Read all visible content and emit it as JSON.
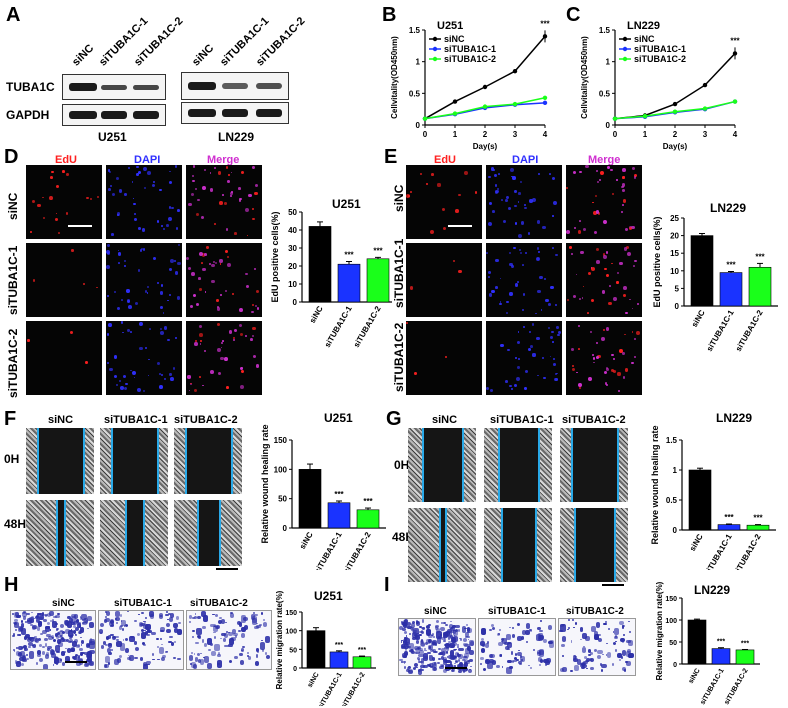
{
  "panels": {
    "A": "A",
    "B": "B",
    "C": "C",
    "D": "D",
    "E": "E",
    "F": "F",
    "G": "G",
    "H": "H",
    "I": "I"
  },
  "groups": {
    "nc": "siNC",
    "t1": "siTUBA1C-1",
    "t2": "siTUBA1C-2"
  },
  "western": {
    "proteins": [
      "TUBA1C",
      "GAPDH"
    ],
    "cell_lines": [
      "U251",
      "LN229"
    ]
  },
  "channels": {
    "edu": "EdU",
    "dapi": "DAPI",
    "merge": "Merge"
  },
  "timepoints": [
    "0H",
    "48H"
  ],
  "colors": {
    "black": "#000000",
    "blue": "#1a33ff",
    "green": "#1aff1a",
    "edu": "#ff2020",
    "dapi": "#3030ff",
    "merge": "#d030d0",
    "scratch_line": "#29a9e8",
    "crystal_violet": "#2c2fa8"
  },
  "sig": "***",
  "chart_data": [
    {
      "id": "B",
      "type": "line",
      "title": "U251",
      "xlabel": "Day(s)",
      "ylabel": "Cellvitality(OD450nm)",
      "x": [
        0,
        1,
        2,
        3,
        4
      ],
      "xlim": [
        0,
        4
      ],
      "ylim": [
        0,
        1.5
      ],
      "yticks": [
        0,
        0.5,
        1,
        1.5
      ],
      "xticks": [
        0,
        1,
        2,
        3,
        4
      ],
      "series": [
        {
          "name": "siNC",
          "color": "#000000",
          "values": [
            0.1,
            0.37,
            0.6,
            0.85,
            1.4
          ]
        },
        {
          "name": "siTUBA1C-1",
          "color": "#1a33ff",
          "values": [
            0.1,
            0.17,
            0.27,
            0.32,
            0.35
          ]
        },
        {
          "name": "siTUBA1C-2",
          "color": "#1aff1a",
          "values": [
            0.1,
            0.18,
            0.29,
            0.33,
            0.43
          ]
        }
      ],
      "annotation": {
        "x": 4,
        "text": "***"
      },
      "legend": "top-left"
    },
    {
      "id": "C",
      "type": "line",
      "title": "LN229",
      "xlabel": "Day(s)",
      "ylabel": "Cellvitality(OD450nm)",
      "x": [
        0,
        1,
        2,
        3,
        4
      ],
      "xlim": [
        0,
        4
      ],
      "ylim": [
        0,
        1.5
      ],
      "yticks": [
        0,
        0.5,
        1,
        1.5
      ],
      "xticks": [
        0,
        1,
        2,
        3,
        4
      ],
      "series": [
        {
          "name": "siNC",
          "color": "#000000",
          "values": [
            0.1,
            0.15,
            0.33,
            0.63,
            1.13
          ]
        },
        {
          "name": "siTUBA1C-1",
          "color": "#1a33ff",
          "values": [
            0.1,
            0.13,
            0.2,
            0.25,
            0.37
          ]
        },
        {
          "name": "siTUBA1C-2",
          "color": "#1aff1a",
          "values": [
            0.1,
            0.14,
            0.21,
            0.26,
            0.37
          ]
        }
      ],
      "annotation": {
        "x": 4,
        "text": "***"
      },
      "legend": "top-left"
    },
    {
      "id": "D",
      "type": "bar",
      "title": "U251",
      "ylabel": "EdU positive cells(%)",
      "categories": [
        "siNC",
        "siTUBA1C-1",
        "siTUBA1C-2"
      ],
      "values": [
        42,
        21,
        24
      ],
      "errors": [
        2.5,
        1.5,
        0.8
      ],
      "ylim": [
        0,
        50
      ],
      "yticks": [
        0,
        10,
        20,
        30,
        40,
        50
      ],
      "sig": [
        "",
        "***",
        "***"
      ]
    },
    {
      "id": "E",
      "type": "bar",
      "title": "LN229",
      "ylabel": "EdU positive cells(%)",
      "categories": [
        "siNC",
        "siTUBA1C-1",
        "siTUBA1C-2"
      ],
      "values": [
        20,
        9.5,
        11
      ],
      "errors": [
        0.6,
        0.3,
        1.1
      ],
      "ylim": [
        0,
        25
      ],
      "yticks": [
        0,
        5,
        10,
        15,
        20,
        25
      ],
      "sig": [
        "",
        "***",
        "***"
      ]
    },
    {
      "id": "F",
      "type": "bar",
      "title": "U251",
      "ylabel": "Relative wound healing rate",
      "categories": [
        "siNC",
        "siTUBA1C-1",
        "siTUBA1C-2"
      ],
      "values": [
        100,
        43,
        31
      ],
      "errors": [
        9,
        3,
        3
      ],
      "ylim": [
        0,
        150
      ],
      "yticks": [
        0,
        50,
        100,
        150
      ],
      "sig": [
        "",
        "***",
        "***"
      ]
    },
    {
      "id": "G",
      "type": "bar",
      "title": "LN229",
      "ylabel": "Relative wound healing rate",
      "categories": [
        "siNC",
        "siTUBA1C-1",
        "siTUBA1C-2"
      ],
      "values": [
        1.0,
        0.09,
        0.08
      ],
      "errors": [
        0.03,
        0.01,
        0.01
      ],
      "ylim": [
        0,
        1.5
      ],
      "yticks": [
        0.0,
        0.5,
        1.0,
        1.5
      ],
      "sig": [
        "",
        "***",
        "***"
      ]
    },
    {
      "id": "H",
      "type": "bar",
      "title": "U251",
      "ylabel": "Relative migration rate(%)",
      "categories": [
        "siNC",
        "siTUBA1C-1",
        "siTUBA1C-2"
      ],
      "values": [
        100,
        43,
        30
      ],
      "errors": [
        8,
        3,
        2
      ],
      "ylim": [
        0,
        150
      ],
      "yticks": [
        0,
        50,
        100,
        150
      ],
      "sig": [
        "",
        "***",
        "***"
      ]
    },
    {
      "id": "I",
      "type": "bar",
      "title": "LN229",
      "ylabel": "Relative migration rate(%)",
      "categories": [
        "siNC",
        "siTUBA1C-1",
        "siTUBA1C-2"
      ],
      "values": [
        100,
        35,
        32
      ],
      "errors": [
        2,
        2,
        1
      ],
      "ylim": [
        0,
        150
      ],
      "yticks": [
        0,
        50,
        100,
        150
      ],
      "sig": [
        "",
        "***",
        "***"
      ]
    }
  ]
}
